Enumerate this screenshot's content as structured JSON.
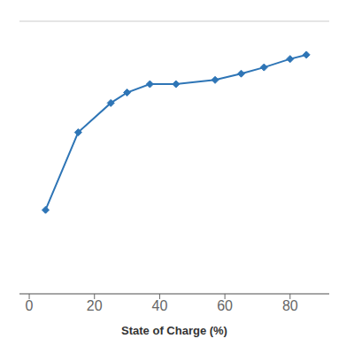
{
  "chart_data": {
    "type": "line",
    "xlabel": "State of Charge (%)",
    "x": [
      5,
      15,
      25,
      30,
      37,
      45,
      57,
      65,
      72,
      80,
      85
    ],
    "values": [
      3.5,
      3.685,
      3.755,
      3.78,
      3.8,
      3.8,
      3.81,
      3.825,
      3.84,
      3.86,
      3.87
    ],
    "color": "#2E75B6",
    "marker": "diamond",
    "line_style": "solid",
    "xlim": [
      -3,
      92
    ],
    "xticks": [
      0,
      20,
      40,
      60,
      80
    ],
    "ylim": [
      3.3,
      3.95
    ],
    "yticks": [
      3.3,
      3.38125,
      3.4625,
      3.54375,
      3.625,
      3.70625,
      3.7875,
      3.86875,
      3.95
    ],
    "grid": true,
    "tick_labels": "x"
  }
}
